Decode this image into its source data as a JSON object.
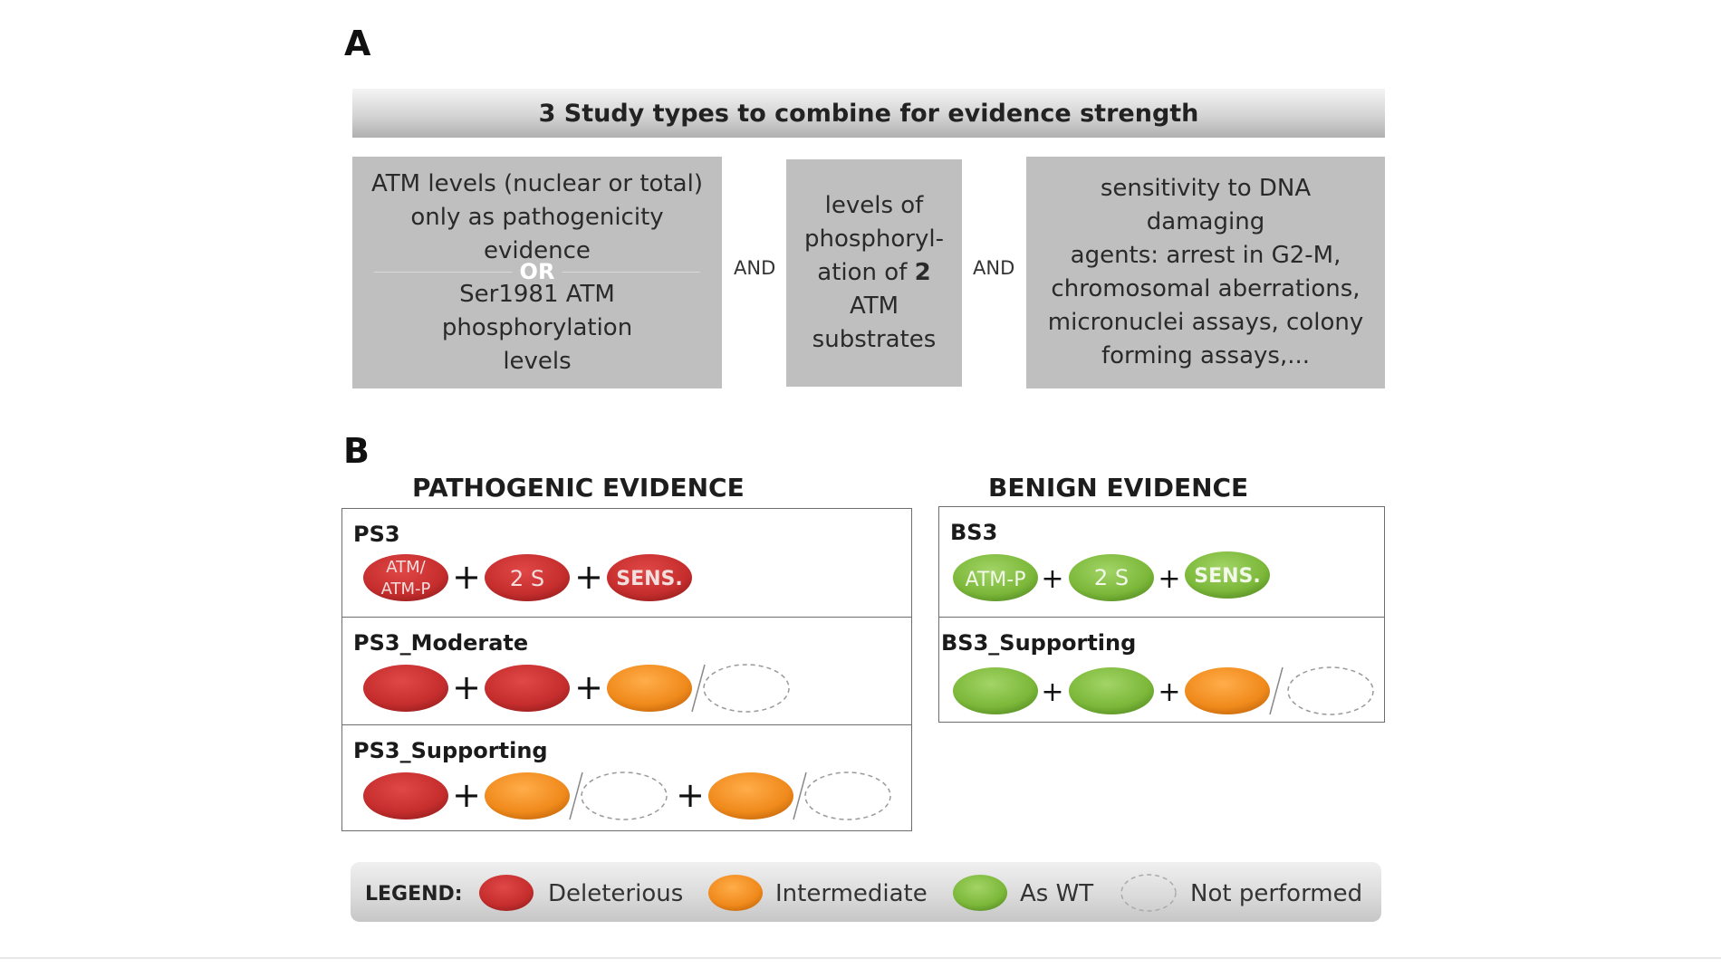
{
  "panel_a": {
    "letter": "A",
    "header": "3 Study types to combine for evidence strength",
    "box1": {
      "line1": "ATM levels (nuclear or total)",
      "line2": "only as pathogenicity",
      "line3": "evidence",
      "or": "OR",
      "line4": "Ser1981 ATM phosphorylation",
      "line5": "levels"
    },
    "and1": "AND",
    "box2": {
      "line1": "levels of",
      "line2": "phosphoryl-",
      "line3_pre": "ation of ",
      "line3_bold": "2",
      "line3_post": " ATM",
      "line4": "substrates"
    },
    "and2": "AND",
    "box3": {
      "line1": "sensitivity to DNA damaging",
      "line2": "agents: arrest in G2-M,",
      "line3": "chromosomal aberrations,",
      "line4": "micronuclei assays, colony",
      "line5": "forming assays,..."
    }
  },
  "panel_b": {
    "letter": "B",
    "pathogenic_title": "PATHOGENIC EVIDENCE",
    "benign_title": "BENIGN EVIDENCE",
    "ps3": {
      "label": "PS3",
      "atm_line1": "ATM/",
      "atm_line2": "ATM-P",
      "two_s": "2 S",
      "sens": "SENS."
    },
    "ps3_moderate": {
      "label": "PS3_Moderate"
    },
    "ps3_supporting": {
      "label": "PS3_Supporting"
    },
    "bs3": {
      "label": "BS3",
      "atm_p": "ATM-P",
      "two_s": "2 S",
      "sens": "SENS."
    },
    "bs3_supporting": {
      "label": "BS3_Supporting"
    },
    "plus": "+"
  },
  "legend": {
    "title": "LEGEND:",
    "deleterious": "Deleterious",
    "intermediate": "Intermediate",
    "as_wt": "As WT",
    "not_performed": "Not performed"
  },
  "colors": {
    "deleterious": "#c62e2e",
    "intermediate": "#f08a1c",
    "as_wt": "#7cb83a",
    "box_gray": "#bfbfbf"
  }
}
